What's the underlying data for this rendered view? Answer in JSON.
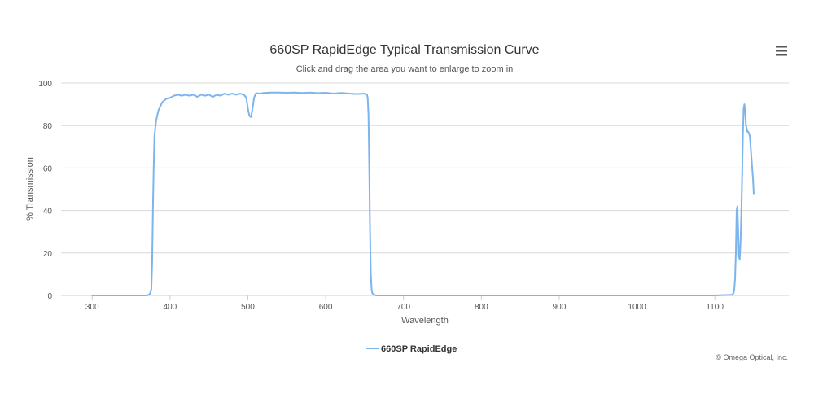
{
  "chart_data": {
    "type": "line",
    "title": "660SP RapidEdge Typical Transmission Curve",
    "subtitle": "Click and drag the area you want to enlarge to zoom in",
    "xlabel": "Wavelength",
    "ylabel": "% Transmission",
    "xlim": [
      260,
      1195
    ],
    "ylim": [
      0,
      100
    ],
    "xticks": [
      300,
      400,
      500,
      600,
      700,
      800,
      900,
      1000,
      1100
    ],
    "yticks": [
      0,
      20,
      40,
      60,
      80,
      100
    ],
    "grid": true,
    "legend_position": "bottom-center",
    "series": [
      {
        "name": "660SP RapidEdge",
        "color": "#7cb5ec",
        "x": [
          300,
          370,
          374,
          376,
          377,
          378,
          379,
          380,
          382,
          385,
          390,
          395,
          400,
          405,
          410,
          415,
          420,
          425,
          430,
          435,
          440,
          445,
          450,
          455,
          460,
          465,
          470,
          475,
          480,
          485,
          490,
          495,
          498,
          500,
          502,
          504,
          506,
          508,
          510,
          512,
          515,
          520,
          530,
          540,
          550,
          560,
          570,
          580,
          590,
          600,
          610,
          620,
          630,
          640,
          650,
          653,
          654,
          655,
          656,
          657,
          658,
          659,
          660,
          662,
          665,
          670,
          700,
          800,
          900,
          1000,
          1100,
          1122,
          1124,
          1125,
          1126,
          1127,
          1128,
          1129,
          1130,
          1131,
          1132,
          1133,
          1134,
          1135,
          1136,
          1137,
          1138,
          1139,
          1140,
          1142,
          1143,
          1145,
          1147,
          1149,
          1150
        ],
        "y": [
          0,
          0,
          0.5,
          3,
          15,
          40,
          60,
          75,
          82,
          87,
          91,
          92.5,
          93,
          94,
          94.5,
          94,
          94.5,
          94,
          94.5,
          93.5,
          94.5,
          94,
          94.5,
          93.5,
          94.5,
          94,
          95,
          94.5,
          95,
          94.5,
          95,
          94.5,
          93,
          88,
          84.5,
          84,
          88,
          93,
          95,
          95.2,
          95,
          95.3,
          95.5,
          95.5,
          95.4,
          95.5,
          95.3,
          95.5,
          95.2,
          95.4,
          95,
          95.3,
          95,
          94.8,
          95,
          94.6,
          93,
          85,
          60,
          30,
          10,
          3,
          1,
          0.3,
          0,
          0,
          0,
          0,
          0,
          0,
          0,
          0.3,
          1,
          3,
          8,
          20,
          40,
          42,
          30,
          18,
          17,
          25,
          38,
          55,
          75,
          88,
          90,
          86,
          80,
          77,
          77,
          75,
          65,
          55,
          48
        ]
      }
    ],
    "credit": "© Omega Optical, Inc."
  },
  "ui": {
    "menu_icon": "hamburger-menu-icon"
  }
}
